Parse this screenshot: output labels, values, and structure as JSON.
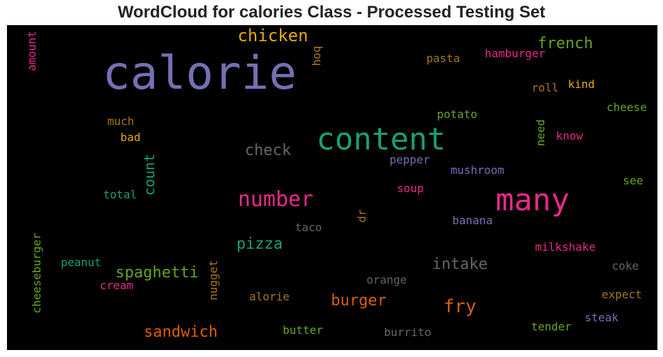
{
  "chart_data": {
    "type": "wordcloud",
    "title": "WordCloud for calories Class - Processed Testing Set",
    "background": "#000000",
    "words": [
      {
        "text": "calorie",
        "color": "#7570b3"
      },
      {
        "text": "content",
        "color": "#1b9e77"
      },
      {
        "text": "many",
        "color": "#e7298a"
      },
      {
        "text": "chicken",
        "color": "#e6ab02"
      },
      {
        "text": "number",
        "color": "#e7298a"
      },
      {
        "text": "french",
        "color": "#66a61e"
      },
      {
        "text": "fry",
        "color": "#d95f02"
      },
      {
        "text": "check",
        "color": "#666666"
      },
      {
        "text": "count",
        "color": "#1b9e77"
      },
      {
        "text": "sandwich",
        "color": "#d95f02"
      },
      {
        "text": "spaghetti",
        "color": "#66a61e"
      },
      {
        "text": "burger",
        "color": "#d95f02"
      },
      {
        "text": "intake",
        "color": "#666666"
      },
      {
        "text": "pizza",
        "color": "#1b9e77"
      },
      {
        "text": "amount",
        "color": "#e7298a"
      },
      {
        "text": "hoq",
        "color": "#a6761d"
      },
      {
        "text": "pasta",
        "color": "#a6761d"
      },
      {
        "text": "hamburger",
        "color": "#e7298a"
      },
      {
        "text": "roll",
        "color": "#a6761d"
      },
      {
        "text": "kind",
        "color": "#e6ab02"
      },
      {
        "text": "cheese",
        "color": "#66a61e"
      },
      {
        "text": "much",
        "color": "#a6761d"
      },
      {
        "text": "bad",
        "color": "#e6ab02"
      },
      {
        "text": "potato",
        "color": "#66a61e"
      },
      {
        "text": "need",
        "color": "#66a61e"
      },
      {
        "text": "know",
        "color": "#e7298a"
      },
      {
        "text": "pepper",
        "color": "#7570b3"
      },
      {
        "text": "mushroom",
        "color": "#7570b3"
      },
      {
        "text": "see",
        "color": "#66a61e"
      },
      {
        "text": "total",
        "color": "#1b9e77"
      },
      {
        "text": "soup",
        "color": "#e7298a"
      },
      {
        "text": "dr",
        "color": "#a6761d"
      },
      {
        "text": "banana",
        "color": "#7570b3"
      },
      {
        "text": "taco",
        "color": "#666666"
      },
      {
        "text": "milkshake",
        "color": "#e7298a"
      },
      {
        "text": "cheeseburger",
        "color": "#66a61e"
      },
      {
        "text": "peanut",
        "color": "#1b9e77"
      },
      {
        "text": "nugget",
        "color": "#a6761d"
      },
      {
        "text": "cream",
        "color": "#e7298a"
      },
      {
        "text": "orange",
        "color": "#666666"
      },
      {
        "text": "coke",
        "color": "#666666"
      },
      {
        "text": "alorie",
        "color": "#a6761d"
      },
      {
        "text": "expect",
        "color": "#a6761d"
      },
      {
        "text": "steak",
        "color": "#7570b3"
      },
      {
        "text": "tender",
        "color": "#66a61e"
      },
      {
        "text": "butter",
        "color": "#66a61e"
      },
      {
        "text": "burrito",
        "color": "#666666"
      }
    ]
  }
}
